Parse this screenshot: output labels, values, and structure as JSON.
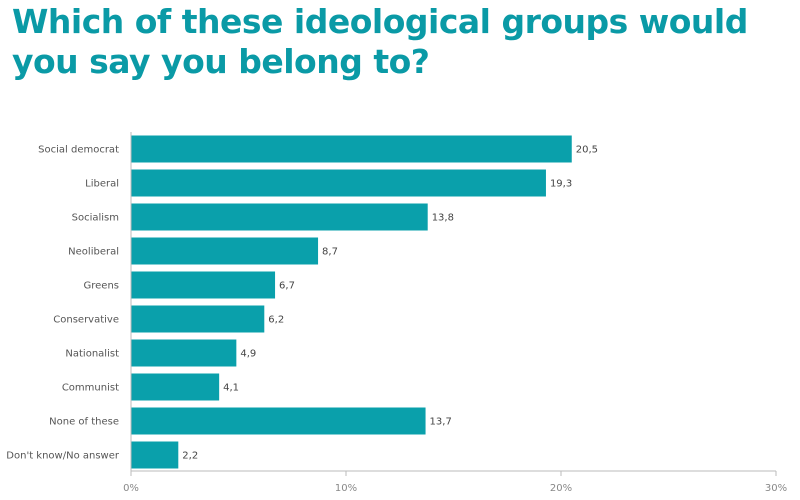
{
  "title": "Which of these ideological groups would you say you belong to?",
  "colors": {
    "title": "#0a9aa6",
    "bar": "#0aa0ab",
    "axis": "#bbbbbb"
  },
  "chart_data": {
    "type": "bar",
    "orientation": "horizontal",
    "categories": [
      "Social democrat",
      "Liberal",
      "Socialism",
      "Neoliberal",
      "Greens",
      "Conservative",
      "Nationalist",
      "Communist",
      "None of these",
      "Don't know/No answer"
    ],
    "values": [
      20.5,
      19.3,
      13.8,
      8.7,
      6.7,
      6.2,
      4.9,
      4.1,
      13.7,
      2.2
    ],
    "value_labels": [
      "20,5",
      "19,3",
      "13,8",
      "8,7",
      "6,7",
      "6,2",
      "4,9",
      "4,1",
      "13,7",
      "2,2"
    ],
    "xlim": [
      0,
      30
    ],
    "xticks": [
      0,
      10,
      20,
      30
    ],
    "xtick_labels": [
      "0%",
      "10%",
      "20%",
      "30%"
    ],
    "grid": false,
    "legend": "none"
  }
}
